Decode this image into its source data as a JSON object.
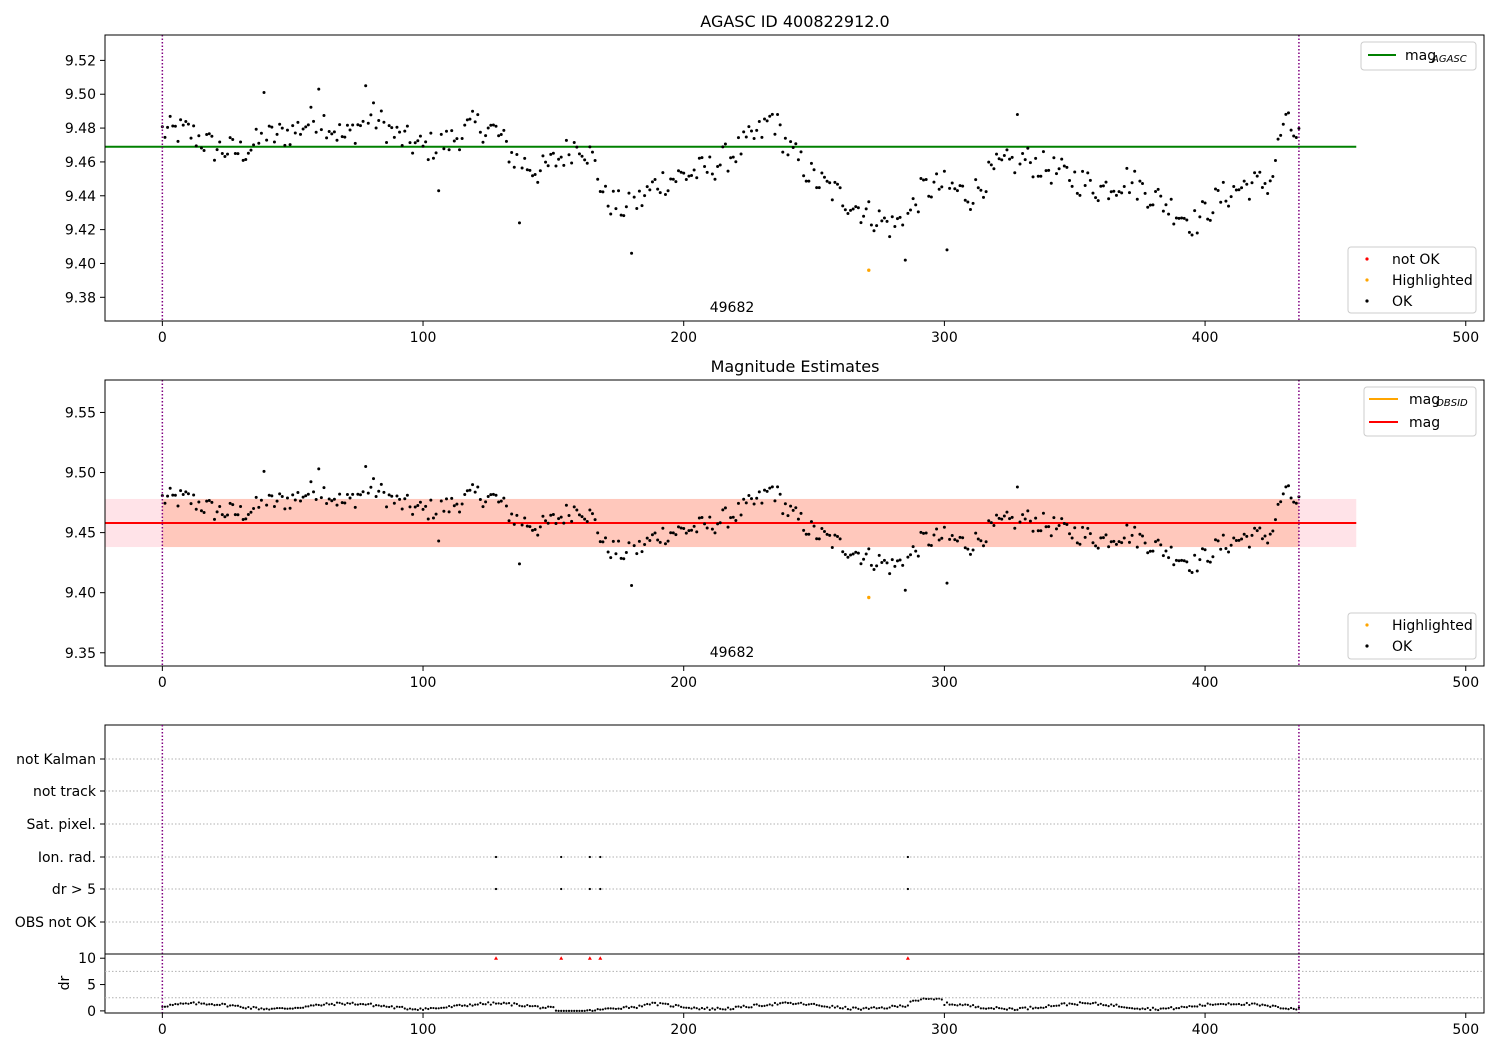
{
  "chart_data": [
    {
      "type": "scatter",
      "title": "AGASC ID 400822912.0",
      "xlim": [
        -22,
        507
      ],
      "ylim": [
        9.366,
        9.535
      ],
      "xticks": [
        "0",
        "100",
        "200",
        "300",
        "400",
        "500"
      ],
      "yticks": [
        "9.38",
        "9.40",
        "9.42",
        "9.44",
        "9.46",
        "9.48",
        "9.50",
        "9.52"
      ],
      "annotation": "49682",
      "vlines": [
        0,
        436
      ],
      "hline": {
        "value": 9.469,
        "x_range": [
          -22,
          458
        ]
      },
      "legend_top": {
        "label": "mag",
        "sub": "AGASC"
      },
      "legend_bottom": [
        "not OK",
        "Highlighted",
        "OK"
      ],
      "highlighted_point": {
        "x": 271,
        "y": 9.396
      },
      "colors": {
        "hline": "#008000",
        "ok": "#000000",
        "not_ok": "#ff0000",
        "highlighted": "#ffa500",
        "vline": "#800080"
      }
    },
    {
      "type": "scatter",
      "title": "Magnitude Estimates",
      "xlim": [
        -22,
        507
      ],
      "ylim": [
        9.339,
        9.577
      ],
      "xticks": [
        "0",
        "100",
        "200",
        "300",
        "400",
        "500"
      ],
      "yticks": [
        "9.35",
        "9.40",
        "9.45",
        "9.50",
        "9.55"
      ],
      "annotation": "49682",
      "vlines": [
        0,
        436
      ],
      "hline": {
        "value": 9.458,
        "x_range": [
          -22,
          458
        ]
      },
      "bands": [
        {
          "low": 9.438,
          "high": 9.478,
          "color": "#ffc0cb"
        },
        {
          "low": 9.438,
          "high": 9.478,
          "x_range": [
            0,
            436
          ],
          "color": "#ffa07a"
        }
      ],
      "legend_top": [
        {
          "label": "mag",
          "sub": "OBSID"
        },
        {
          "label": "mag"
        }
      ],
      "legend_bottom": [
        "Highlighted",
        "OK"
      ],
      "highlighted_point": {
        "x": 271,
        "y": 9.396
      },
      "colors": {
        "obsid": "#ffa500",
        "mag": "#ff0000",
        "band_outer": "#ffc0cb",
        "band_inner": "#ffa07a"
      }
    },
    {
      "type": "scatter",
      "title": "",
      "xlim": [
        -22,
        507
      ],
      "xticks": [
        "0",
        "100",
        "200",
        "300",
        "400",
        "500"
      ],
      "flag_rows": [
        "not Kalman",
        "not track",
        "Sat. pixel.",
        "Ion. rad.",
        "dr > 5",
        "OBS not OK"
      ],
      "flag_events": {
        "Ion. rad.": [
          128,
          153,
          164,
          168,
          286
        ],
        "dr > 5": [
          128,
          153,
          164,
          168,
          286
        ]
      },
      "dr_axis": {
        "ylabel": "dr",
        "yticks": [
          "0",
          "5",
          "10"
        ],
        "ylim": [
          -0.4,
          10.8
        ]
      },
      "dr_flag_points": [
        128,
        153,
        164,
        168,
        286
      ],
      "vlines": [
        0,
        436
      ],
      "colors": {
        "grid": "#b0b0b0",
        "flag": "#ff0000"
      }
    }
  ]
}
